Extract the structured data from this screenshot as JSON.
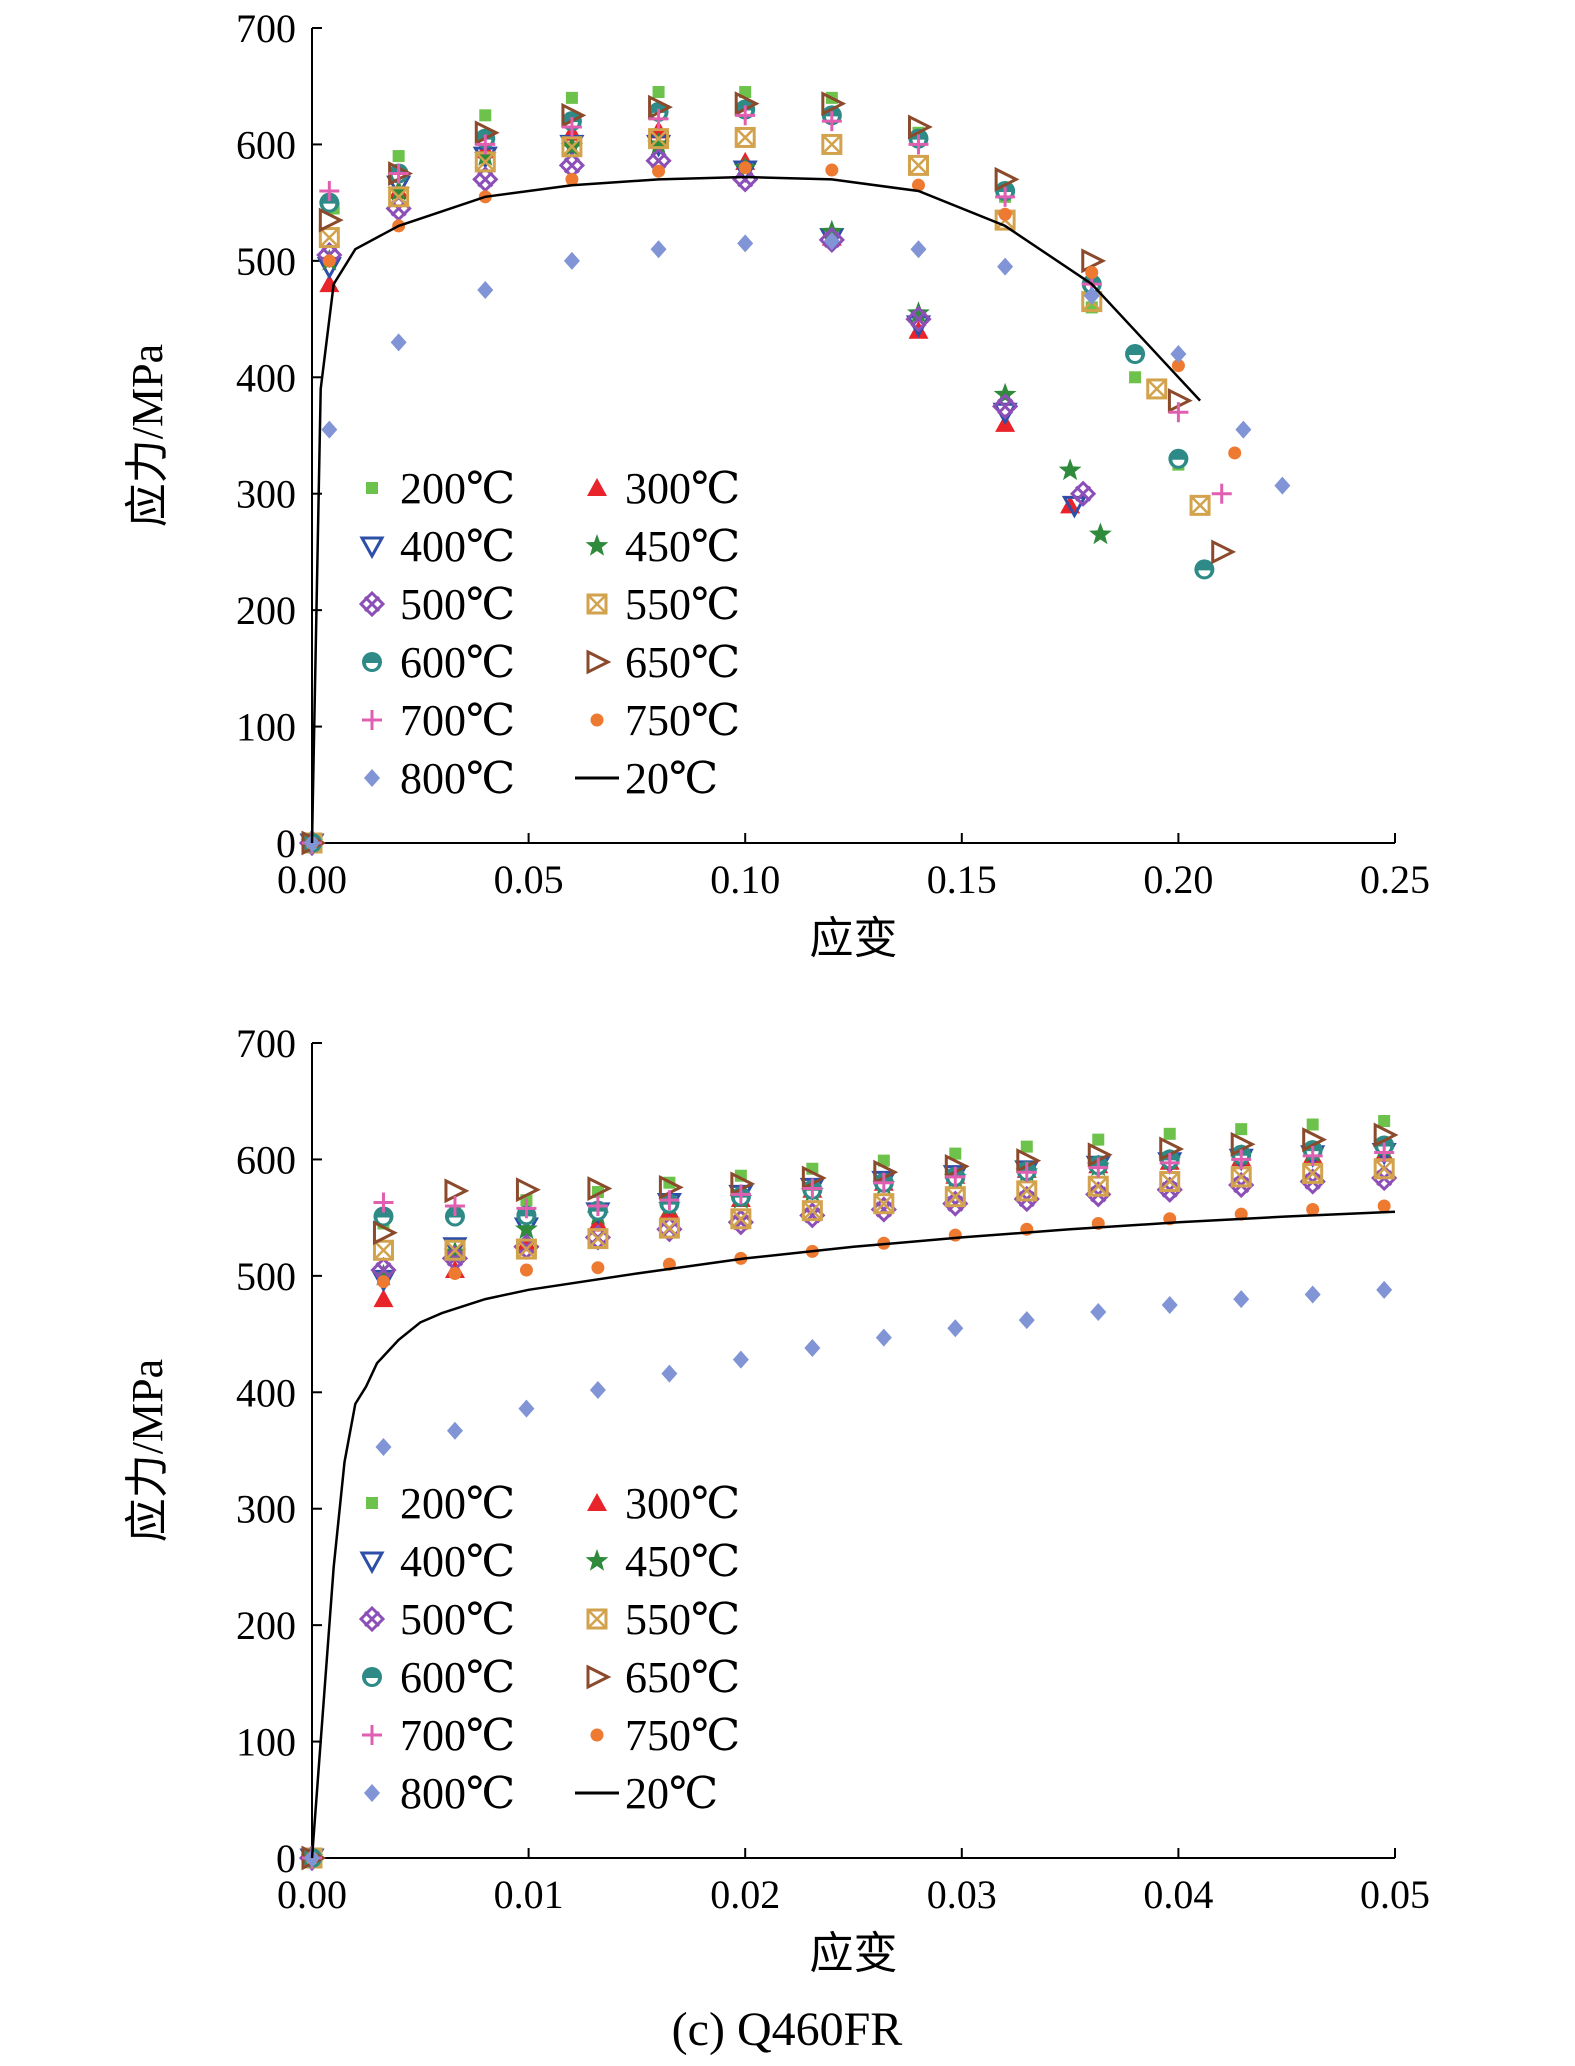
{
  "caption": "(c) Q460FR",
  "colors": {
    "200℃": "#6cc24a",
    "300℃": "#e8232a",
    "400℃": "#2e4fa8",
    "450℃": "#2f8a3b",
    "500℃": "#8c4fb8",
    "550℃": "#d2a24c",
    "600℃": "#2d8a86",
    "650℃": "#8b4a2b",
    "700℃": "#e05fb0",
    "750℃": "#ee7a32",
    "800℃": "#8094d6",
    "20℃": "#000000"
  },
  "markers": {
    "200℃": "square",
    "300℃": "triangle-up",
    "400℃": "triangle-down-open",
    "450℃": "star",
    "500℃": "square-x",
    "550℃": "square-x-gold",
    "600℃": "circle-half",
    "650℃": "triangle-right-open",
    "700℃": "plus",
    "750℃": "dot",
    "800℃": "diamond",
    "20℃": "line"
  },
  "chart_data": [
    {
      "type": "scatter",
      "xlabel": "应变",
      "ylabel": "应力/MPa",
      "xlim": [
        0,
        0.25
      ],
      "ylim": [
        0,
        700
      ],
      "xticks": [
        "0.00",
        "0.05",
        "0.10",
        "0.15",
        "0.20",
        "0.25"
      ],
      "yticks": [
        "0",
        "100",
        "200",
        "300",
        "400",
        "500",
        "600",
        "700"
      ],
      "legend": [
        "200℃",
        "300℃",
        "400℃",
        "450℃",
        "500℃",
        "550℃",
        "600℃",
        "650℃",
        "700℃",
        "750℃",
        "800℃",
        "20℃"
      ],
      "legend_placement": "lower-left",
      "series": [
        {
          "name": "200℃",
          "x": [
            0,
            0.005,
            0.02,
            0.04,
            0.06,
            0.08,
            0.1,
            0.12,
            0.14,
            0.16,
            0.18,
            0.19,
            0.2
          ],
          "y": [
            0,
            545,
            590,
            625,
            640,
            645,
            645,
            640,
            610,
            555,
            460,
            400,
            325
          ]
        },
        {
          "name": "300℃",
          "x": [
            0,
            0.004,
            0.02,
            0.04,
            0.06,
            0.08,
            0.1,
            0.12,
            0.14,
            0.16,
            0.175
          ],
          "y": [
            0,
            480,
            560,
            595,
            610,
            612,
            585,
            520,
            440,
            360,
            290
          ]
        },
        {
          "name": "400℃",
          "x": [
            0,
            0.004,
            0.02,
            0.04,
            0.06,
            0.08,
            0.1,
            0.12,
            0.14,
            0.16,
            0.176
          ],
          "y": [
            0,
            495,
            565,
            590,
            600,
            600,
            578,
            520,
            445,
            370,
            290
          ]
        },
        {
          "name": "450℃",
          "x": [
            0,
            0.004,
            0.02,
            0.04,
            0.06,
            0.08,
            0.1,
            0.12,
            0.14,
            0.16,
            0.175,
            0.182
          ],
          "y": [
            0,
            500,
            560,
            590,
            598,
            600,
            580,
            525,
            455,
            385,
            320,
            265
          ]
        },
        {
          "name": "500℃",
          "x": [
            0,
            0.004,
            0.02,
            0.04,
            0.06,
            0.08,
            0.1,
            0.12,
            0.14,
            0.16,
            0.178
          ],
          "y": [
            0,
            505,
            545,
            570,
            582,
            586,
            570,
            518,
            450,
            375,
            300
          ]
        },
        {
          "name": "550℃",
          "x": [
            0,
            0.004,
            0.02,
            0.04,
            0.06,
            0.08,
            0.1,
            0.12,
            0.14,
            0.16,
            0.18,
            0.195,
            0.205
          ],
          "y": [
            0,
            520,
            555,
            585,
            598,
            605,
            606,
            600,
            582,
            535,
            465,
            390,
            290
          ]
        },
        {
          "name": "600℃",
          "x": [
            0,
            0.004,
            0.02,
            0.04,
            0.06,
            0.08,
            0.1,
            0.12,
            0.14,
            0.16,
            0.18,
            0.19,
            0.2,
            0.206
          ],
          "y": [
            0,
            550,
            575,
            605,
            620,
            628,
            630,
            625,
            605,
            560,
            480,
            420,
            330,
            235
          ]
        },
        {
          "name": "650℃",
          "x": [
            0,
            0.004,
            0.02,
            0.04,
            0.06,
            0.08,
            0.1,
            0.12,
            0.14,
            0.16,
            0.18,
            0.2,
            0.21
          ],
          "y": [
            0,
            535,
            575,
            610,
            625,
            632,
            635,
            635,
            615,
            570,
            500,
            380,
            250
          ]
        },
        {
          "name": "700℃",
          "x": [
            0,
            0.004,
            0.02,
            0.04,
            0.06,
            0.08,
            0.1,
            0.12,
            0.14,
            0.16,
            0.18,
            0.2,
            0.21
          ],
          "y": [
            0,
            560,
            575,
            600,
            615,
            622,
            625,
            620,
            600,
            555,
            480,
            370,
            300
          ]
        },
        {
          "name": "750℃",
          "x": [
            0,
            0.004,
            0.02,
            0.04,
            0.06,
            0.08,
            0.1,
            0.12,
            0.14,
            0.16,
            0.18,
            0.2,
            0.213
          ],
          "y": [
            0,
            500,
            530,
            555,
            570,
            577,
            580,
            578,
            565,
            540,
            490,
            410,
            335
          ]
        },
        {
          "name": "800℃",
          "x": [
            0,
            0.004,
            0.02,
            0.04,
            0.06,
            0.08,
            0.1,
            0.12,
            0.14,
            0.16,
            0.18,
            0.2,
            0.215,
            0.224
          ],
          "y": [
            0,
            355,
            430,
            475,
            500,
            510,
            515,
            517,
            510,
            495,
            470,
            420,
            355,
            307
          ]
        },
        {
          "name": "20℃",
          "type": "line",
          "x": [
            0,
            0.002,
            0.005,
            0.01,
            0.02,
            0.04,
            0.06,
            0.08,
            0.1,
            0.12,
            0.14,
            0.16,
            0.18,
            0.19,
            0.2,
            0.205
          ],
          "y": [
            0,
            390,
            480,
            510,
            530,
            555,
            565,
            570,
            572,
            570,
            560,
            530,
            480,
            440,
            400,
            380
          ]
        }
      ]
    },
    {
      "type": "scatter",
      "xlabel": "应变",
      "ylabel": "应力/MPa",
      "xlim": [
        0,
        0.05
      ],
      "ylim": [
        0,
        700
      ],
      "xticks": [
        "0.00",
        "0.01",
        "0.02",
        "0.03",
        "0.04",
        "0.05"
      ],
      "yticks": [
        "0",
        "100",
        "200",
        "300",
        "400",
        "500",
        "600",
        "700"
      ],
      "legend": [
        "200℃",
        "300℃",
        "400℃",
        "450℃",
        "500℃",
        "550℃",
        "600℃",
        "650℃",
        "700℃",
        "750℃",
        "800℃",
        "20℃"
      ],
      "legend_placement": "lower-left",
      "series": [
        {
          "name": "200℃",
          "x": [
            0,
            0.0033,
            0.0066,
            0.0099,
            0.0132,
            0.0165,
            0.0198,
            0.0231,
            0.0264,
            0.0297,
            0.033,
            0.0363,
            0.0396,
            0.0429,
            0.0462,
            0.0495
          ],
          "y": [
            0,
            545,
            555,
            565,
            572,
            580,
            586,
            592,
            599,
            605,
            611,
            617,
            622,
            626,
            630,
            633
          ]
        },
        {
          "name": "300℃",
          "x": [
            0,
            0.0033,
            0.0066,
            0.0099,
            0.0132,
            0.0165,
            0.0198,
            0.0231,
            0.0264,
            0.0297,
            0.033,
            0.0363,
            0.0396,
            0.0429,
            0.0462,
            0.0495
          ],
          "y": [
            0,
            480,
            505,
            528,
            545,
            556,
            566,
            574,
            580,
            586,
            591,
            595,
            598,
            601,
            603,
            605
          ]
        },
        {
          "name": "400℃",
          "x": [
            0,
            0.0033,
            0.0066,
            0.0099,
            0.0132,
            0.0165,
            0.0198,
            0.0231,
            0.0264,
            0.0297,
            0.033,
            0.0363,
            0.0396,
            0.0429,
            0.0462,
            0.0495
          ],
          "y": [
            0,
            497,
            525,
            542,
            555,
            563,
            570,
            576,
            582,
            587,
            591,
            595,
            598,
            601,
            604,
            606
          ]
        },
        {
          "name": "450℃",
          "x": [
            0,
            0.0033,
            0.0066,
            0.0099,
            0.0132,
            0.0165,
            0.0198,
            0.0231,
            0.0264,
            0.0297,
            0.033,
            0.0363,
            0.0396,
            0.0429,
            0.0462,
            0.0495
          ],
          "y": [
            0,
            500,
            520,
            540,
            552,
            560,
            566,
            572,
            578,
            584,
            589,
            594,
            599,
            603,
            606,
            610
          ]
        },
        {
          "name": "500℃",
          "x": [
            0,
            0.0033,
            0.0066,
            0.0099,
            0.0132,
            0.0165,
            0.0198,
            0.0231,
            0.0264,
            0.0297,
            0.033,
            0.0363,
            0.0396,
            0.0429,
            0.0462,
            0.0495
          ],
          "y": [
            0,
            505,
            515,
            525,
            533,
            540,
            546,
            552,
            557,
            562,
            566,
            570,
            574,
            578,
            581,
            584
          ]
        },
        {
          "name": "550℃",
          "x": [
            0,
            0.0033,
            0.0066,
            0.0099,
            0.0132,
            0.0165,
            0.0198,
            0.0231,
            0.0264,
            0.0297,
            0.033,
            0.0363,
            0.0396,
            0.0429,
            0.0462,
            0.0495
          ],
          "y": [
            0,
            522,
            522,
            523,
            532,
            541,
            549,
            556,
            562,
            568,
            573,
            577,
            581,
            585,
            588,
            592
          ]
        },
        {
          "name": "600℃",
          "x": [
            0,
            0.0033,
            0.0066,
            0.0099,
            0.0132,
            0.0165,
            0.0198,
            0.0231,
            0.0264,
            0.0297,
            0.033,
            0.0363,
            0.0396,
            0.0429,
            0.0462,
            0.0495
          ],
          "y": [
            0,
            551,
            551,
            552,
            556,
            562,
            568,
            574,
            580,
            585,
            590,
            595,
            600,
            604,
            608,
            612
          ]
        },
        {
          "name": "650℃",
          "x": [
            0,
            0.0033,
            0.0066,
            0.0099,
            0.0132,
            0.0165,
            0.0198,
            0.0231,
            0.0264,
            0.0297,
            0.033,
            0.0363,
            0.0396,
            0.0429,
            0.0462,
            0.0495
          ],
          "y": [
            0,
            537,
            573,
            574,
            575,
            576,
            579,
            584,
            589,
            594,
            599,
            604,
            609,
            613,
            617,
            621
          ]
        },
        {
          "name": "700℃",
          "x": [
            0,
            0.0033,
            0.0066,
            0.0099,
            0.0132,
            0.0165,
            0.0198,
            0.0231,
            0.0264,
            0.0297,
            0.033,
            0.0363,
            0.0396,
            0.0429,
            0.0462,
            0.0495
          ],
          "y": [
            0,
            563,
            560,
            558,
            560,
            565,
            570,
            575,
            580,
            585,
            589,
            593,
            597,
            600,
            603,
            606
          ]
        },
        {
          "name": "750℃",
          "x": [
            0,
            0.0033,
            0.0066,
            0.0099,
            0.0132,
            0.0165,
            0.0198,
            0.0231,
            0.0264,
            0.0297,
            0.033,
            0.0363,
            0.0396,
            0.0429,
            0.0462,
            0.0495
          ],
          "y": [
            0,
            495,
            502,
            505,
            507,
            510,
            515,
            521,
            528,
            535,
            540,
            545,
            549,
            553,
            557,
            560
          ]
        },
        {
          "name": "800℃",
          "x": [
            0,
            0.0033,
            0.0066,
            0.0099,
            0.0132,
            0.0165,
            0.0198,
            0.0231,
            0.0264,
            0.0297,
            0.033,
            0.0363,
            0.0396,
            0.0429,
            0.0462,
            0.0495
          ],
          "y": [
            0,
            353,
            367,
            386,
            402,
            416,
            428,
            438,
            447,
            455,
            462,
            469,
            475,
            480,
            484,
            488
          ]
        },
        {
          "name": "20℃",
          "type": "line",
          "x": [
            0,
            0.001,
            0.0015,
            0.002,
            0.0025,
            0.003,
            0.004,
            0.005,
            0.006,
            0.008,
            0.01,
            0.015,
            0.02,
            0.025,
            0.03,
            0.035,
            0.04,
            0.045,
            0.05
          ],
          "y": [
            0,
            250,
            340,
            390,
            405,
            425,
            445,
            460,
            468,
            480,
            488,
            502,
            515,
            525,
            533,
            540,
            546,
            551,
            555
          ]
        }
      ]
    }
  ]
}
